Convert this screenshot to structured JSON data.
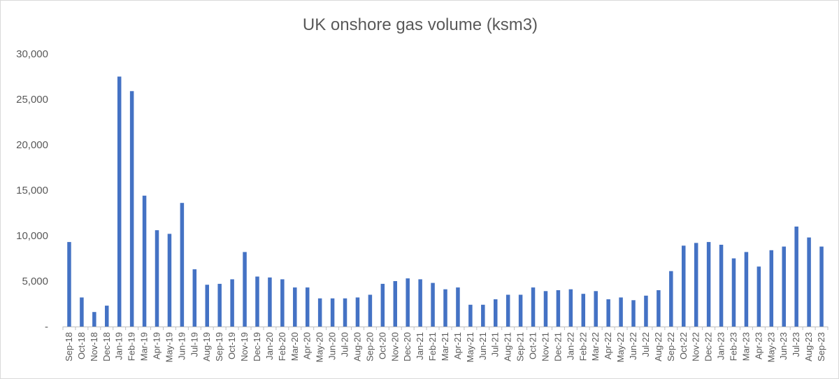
{
  "chart_data": {
    "type": "bar",
    "title": "UK onshore gas volume (ksm3)",
    "xlabel": "",
    "ylabel": "",
    "ylim": [
      0,
      30000
    ],
    "yticks": [
      0,
      5000,
      10000,
      15000,
      20000,
      25000,
      30000
    ],
    "ytick_labels": [
      "-",
      "5,000",
      "10,000",
      "15,000",
      "20,000",
      "25,000",
      "30,000"
    ],
    "grid": false,
    "legend": "none",
    "bar_color": "#4472c4",
    "categories": [
      "Sep-18",
      "Oct-18",
      "Nov-18",
      "Dec-18",
      "Jan-19",
      "Feb-19",
      "Mar-19",
      "Apr-19",
      "May-19",
      "Jun-19",
      "Jul-19",
      "Aug-19",
      "Sep-19",
      "Oct-19",
      "Nov-19",
      "Dec-19",
      "Jan-20",
      "Feb-20",
      "Mar-20",
      "Apr-20",
      "May-20",
      "Jun-20",
      "Jul-20",
      "Aug-20",
      "Sep-20",
      "Oct-20",
      "Nov-20",
      "Dec-20",
      "Jan-21",
      "Feb-21",
      "Mar-21",
      "Apr-21",
      "May-21",
      "Jun-21",
      "Jul-21",
      "Aug-21",
      "Sep-21",
      "Oct-21",
      "Nov-21",
      "Dec-21",
      "Jan-22",
      "Feb-22",
      "Mar-22",
      "Apr-22",
      "May-22",
      "Jun-22",
      "Jul-22",
      "Aug-22",
      "Sep-22",
      "Oct-22",
      "Nov-22",
      "Dec-22",
      "Jan-23",
      "Feb-23",
      "Mar-23",
      "Apr-23",
      "May-23",
      "Jun-23",
      "Jul-23",
      "Aug-23",
      "Sep-23"
    ],
    "values": [
      9300,
      3200,
      1600,
      2300,
      27500,
      25900,
      14400,
      10600,
      10200,
      13600,
      6300,
      4600,
      4700,
      5200,
      8200,
      5500,
      5400,
      5200,
      4300,
      4300,
      3100,
      3100,
      3100,
      3200,
      3500,
      4700,
      5000,
      5300,
      5200,
      4800,
      4100,
      4300,
      2400,
      2400,
      3000,
      3500,
      3500,
      4300,
      3900,
      4000,
      4100,
      3600,
      3900,
      3000,
      3200,
      2900,
      3400,
      4000,
      6100,
      8900,
      9200,
      9300,
      9000,
      7500,
      8200,
      6600,
      8400,
      8800,
      11000,
      9800,
      8800
    ]
  }
}
